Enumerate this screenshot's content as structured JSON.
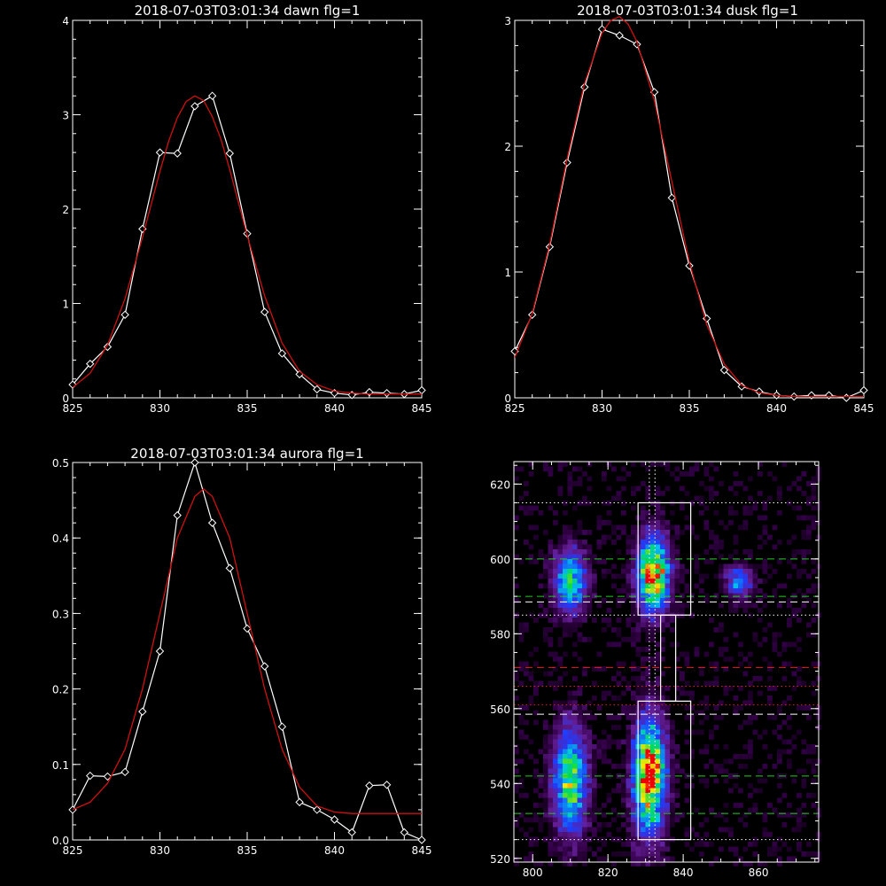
{
  "colors": {
    "background": "#000000",
    "axes": "#ffffff",
    "data": "#ffffff",
    "fit": "#d01010",
    "marker_green": "#22cc22",
    "marker_red": "#e02020",
    "marker_white": "#ffffff"
  },
  "chart_data": [
    {
      "type": "line",
      "title": "2018-07-03T03:01:34 dawn flg=1",
      "xlim": [
        825,
        845
      ],
      "ylim": [
        0,
        4
      ],
      "xticks": [
        "825",
        "830",
        "835",
        "840",
        "845"
      ],
      "yticks": [
        "0",
        "1",
        "2",
        "3",
        "4"
      ],
      "series": [
        {
          "role": "data",
          "style": "white line with diamond markers",
          "x": [
            825,
            826,
            827,
            828,
            829,
            830,
            831,
            832,
            833,
            834,
            835,
            836,
            837,
            838,
            839,
            840,
            841,
            842,
            843,
            844,
            845
          ],
          "y": [
            0.14,
            0.36,
            0.54,
            0.88,
            1.79,
            2.6,
            2.59,
            3.09,
            3.2,
            2.59,
            1.74,
            0.91,
            0.47,
            0.25,
            0.09,
            0.05,
            0.03,
            0.06,
            0.05,
            0.04,
            0.08
          ]
        },
        {
          "role": "fit",
          "style": "red gaussian",
          "x": [
            825,
            826,
            827,
            828,
            829,
            830,
            830.5,
            831,
            831.5,
            832,
            832.5,
            833,
            833.5,
            834,
            835,
            836,
            837,
            838,
            839,
            840,
            841,
            842,
            843,
            844,
            845
          ],
          "y": [
            0.11,
            0.26,
            0.56,
            1.05,
            1.7,
            2.4,
            2.72,
            2.97,
            3.14,
            3.2,
            3.15,
            2.98,
            2.74,
            2.42,
            1.72,
            1.08,
            0.58,
            0.28,
            0.14,
            0.07,
            0.05,
            0.04,
            0.04,
            0.04,
            0.04
          ]
        }
      ]
    },
    {
      "type": "line",
      "title": "2018-07-03T03:01:34 dusk flg=1",
      "xlim": [
        825,
        845
      ],
      "ylim": [
        0,
        3
      ],
      "xticks": [
        "825",
        "830",
        "835",
        "840",
        "845"
      ],
      "yticks": [
        "0",
        "1",
        "2",
        "3"
      ],
      "series": [
        {
          "role": "data",
          "style": "white line with diamond markers",
          "x": [
            825,
            826,
            827,
            828,
            829,
            830,
            831,
            832,
            833,
            834,
            835,
            836,
            837,
            838,
            839,
            840,
            841,
            842,
            843,
            844,
            845
          ],
          "y": [
            0.37,
            0.66,
            1.2,
            1.87,
            2.47,
            2.93,
            2.88,
            2.81,
            2.43,
            1.59,
            1.05,
            0.63,
            0.22,
            0.09,
            0.05,
            0.02,
            0.01,
            0.02,
            0.02,
            0.0,
            0.06
          ]
        },
        {
          "role": "fit",
          "style": "red gaussian",
          "x": [
            825,
            826,
            827,
            828,
            829,
            830,
            830.5,
            831,
            831.5,
            832,
            833,
            834,
            835,
            836,
            837,
            838,
            839,
            840,
            841,
            842,
            843,
            844,
            845
          ],
          "y": [
            0.32,
            0.67,
            1.22,
            1.9,
            2.5,
            2.9,
            3.0,
            3.03,
            2.97,
            2.83,
            2.36,
            1.72,
            1.08,
            0.58,
            0.27,
            0.1,
            0.04,
            0.02,
            0.01,
            0.01,
            0.01,
            0.01,
            0.01
          ]
        }
      ]
    },
    {
      "type": "line",
      "title": "2018-07-03T03:01:34 aurora flg=1",
      "xlim": [
        825,
        845
      ],
      "ylim": [
        0,
        0.5
      ],
      "xticks": [
        "825",
        "830",
        "835",
        "840",
        "845"
      ],
      "yticks": [
        "0.0",
        "0.1",
        "0.2",
        "0.3",
        "0.4",
        "0.5"
      ],
      "series": [
        {
          "role": "data",
          "style": "white line with diamond markers",
          "x": [
            825,
            826,
            827,
            828,
            829,
            830,
            831,
            832,
            833,
            834,
            835,
            836,
            837,
            838,
            839,
            840,
            841,
            842,
            843,
            844,
            845
          ],
          "y": [
            0.04,
            0.085,
            0.084,
            0.09,
            0.17,
            0.25,
            0.43,
            0.5,
            0.42,
            0.36,
            0.28,
            0.23,
            0.15,
            0.05,
            0.04,
            0.027,
            0.01,
            0.072,
            0.073,
            0.01,
            0.0
          ]
        },
        {
          "role": "fit",
          "style": "red gaussian",
          "x": [
            825,
            826,
            827,
            828,
            829,
            830,
            831,
            832,
            832.5,
            833,
            834,
            835,
            836,
            837,
            838,
            839,
            840,
            841,
            842,
            843,
            844,
            845
          ],
          "y": [
            0.04,
            0.05,
            0.075,
            0.12,
            0.2,
            0.3,
            0.4,
            0.455,
            0.465,
            0.455,
            0.4,
            0.3,
            0.2,
            0.12,
            0.07,
            0.045,
            0.037,
            0.035,
            0.035,
            0.035,
            0.035,
            0.035
          ]
        }
      ]
    },
    {
      "type": "heatmap",
      "title": "",
      "xlim": [
        795,
        876
      ],
      "ylim": [
        519,
        626
      ],
      "xticks": [
        "800",
        "820",
        "840",
        "860"
      ],
      "yticks": [
        "520",
        "540",
        "560",
        "580",
        "600",
        "620"
      ],
      "colormap": "rainbow (black-purple-blue-cyan-green-yellow-red)",
      "blobs": [
        {
          "x": 810,
          "y": 594,
          "sx": 3.2,
          "sy": 6,
          "amp": 0.65
        },
        {
          "x": 832,
          "y": 596,
          "sx": 3.0,
          "sy": 7,
          "amp": 1.0
        },
        {
          "x": 855,
          "y": 594,
          "sx": 2.6,
          "sy": 3,
          "amp": 0.5
        },
        {
          "x": 810,
          "y": 541,
          "sx": 3.2,
          "sy": 10,
          "amp": 0.75
        },
        {
          "x": 831,
          "y": 542,
          "sx": 3.0,
          "sy": 11,
          "amp": 1.0
        }
      ],
      "boxes": [
        {
          "x": [
            828,
            842
          ],
          "y": [
            585,
            615
          ]
        },
        {
          "x": [
            834,
            838
          ],
          "y": [
            562,
            585
          ]
        },
        {
          "x": [
            828,
            842
          ],
          "y": [
            525,
            562
          ]
        }
      ],
      "hlines": [
        {
          "y": 615,
          "style": "dotted",
          "color": "white"
        },
        {
          "y": 600,
          "style": "dashed",
          "color": "green"
        },
        {
          "y": 590,
          "style": "dashed",
          "color": "green"
        },
        {
          "y": 588.5,
          "style": "dashed",
          "color": "white"
        },
        {
          "y": 585,
          "style": "dotted",
          "color": "white"
        },
        {
          "y": 571,
          "style": "dashed",
          "color": "red"
        },
        {
          "y": 566,
          "style": "dotted",
          "color": "red"
        },
        {
          "y": 561,
          "style": "dotted",
          "color": "red"
        },
        {
          "y": 558.5,
          "style": "dashed",
          "color": "white"
        },
        {
          "y": 542,
          "style": "dashed",
          "color": "green"
        },
        {
          "y": 532,
          "style": "dashed",
          "color": "green"
        },
        {
          "y": 525,
          "style": "dotted",
          "color": "white"
        }
      ],
      "vlines": [
        {
          "x": 831,
          "style": "dotted",
          "color": "white"
        },
        {
          "x": 832.5,
          "style": "dotted",
          "color": "white"
        }
      ]
    }
  ]
}
